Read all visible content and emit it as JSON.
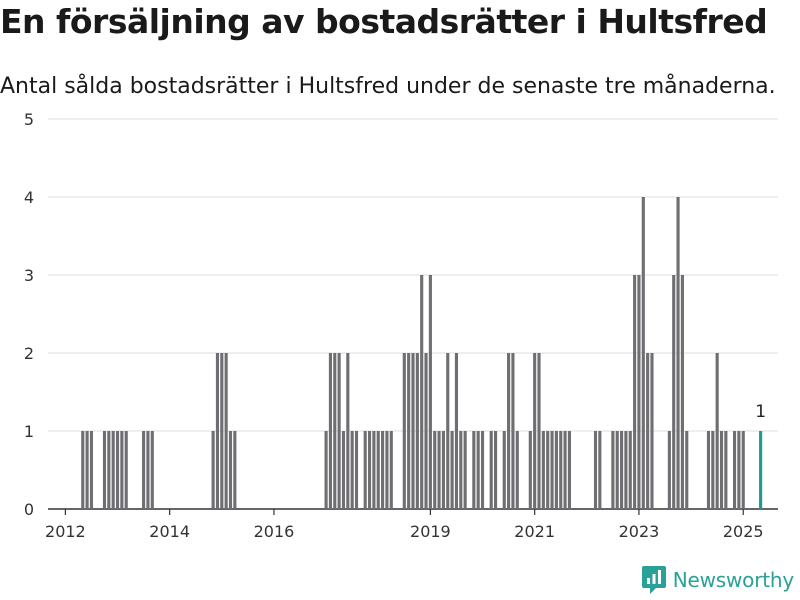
{
  "title": "En försäljning av bostadsrätter i Hultsfred",
  "subtitle": "Antal sålda bostadsrätter i Hultsfred under de senaste tre månaderna.",
  "brand": {
    "name": "Newsworthy",
    "icon": "newsworthy-logo-icon",
    "color": "#2aa198"
  },
  "colors": {
    "bar": "#6f6f73",
    "highlight": "#1f9a8f",
    "grid": "#dddddd",
    "axis": "#333333"
  },
  "chart_data": {
    "type": "bar",
    "ylim": [
      0,
      5
    ],
    "yticks": [
      0,
      1,
      2,
      3,
      4,
      5
    ],
    "xlim": [
      "2011-09",
      "2025-09"
    ],
    "xticks": [
      "2012",
      "2014",
      "2016",
      "2019",
      "2021",
      "2023",
      "2025"
    ],
    "grid": true,
    "series": [
      {
        "values": [
          [
            "2012-05",
            1
          ],
          [
            "2012-06",
            1
          ],
          [
            "2012-07",
            1
          ],
          [
            "2012-10",
            1
          ],
          [
            "2012-11",
            1
          ],
          [
            "2012-12",
            1
          ],
          [
            "2013-01",
            1
          ],
          [
            "2013-02",
            1
          ],
          [
            "2013-03",
            1
          ],
          [
            "2013-07",
            1
          ],
          [
            "2013-08",
            1
          ],
          [
            "2013-09",
            1
          ],
          [
            "2014-11",
            1
          ],
          [
            "2014-12",
            2
          ],
          [
            "2015-01",
            2
          ],
          [
            "2015-02",
            2
          ],
          [
            "2015-03",
            1
          ],
          [
            "2015-04",
            1
          ],
          [
            "2017-01",
            1
          ],
          [
            "2017-02",
            2
          ],
          [
            "2017-03",
            2
          ],
          [
            "2017-04",
            2
          ],
          [
            "2017-05",
            1
          ],
          [
            "2017-06",
            2
          ],
          [
            "2017-07",
            1
          ],
          [
            "2017-08",
            1
          ],
          [
            "2017-10",
            1
          ],
          [
            "2017-11",
            1
          ],
          [
            "2017-12",
            1
          ],
          [
            "2018-01",
            1
          ],
          [
            "2018-02",
            1
          ],
          [
            "2018-03",
            1
          ],
          [
            "2018-04",
            1
          ],
          [
            "2018-07",
            2
          ],
          [
            "2018-08",
            2
          ],
          [
            "2018-09",
            2
          ],
          [
            "2018-10",
            2
          ],
          [
            "2018-11",
            3
          ],
          [
            "2018-12",
            2
          ],
          [
            "2019-01",
            3
          ],
          [
            "2019-02",
            1
          ],
          [
            "2019-03",
            1
          ],
          [
            "2019-04",
            1
          ],
          [
            "2019-05",
            2
          ],
          [
            "2019-06",
            1
          ],
          [
            "2019-07",
            2
          ],
          [
            "2019-08",
            1
          ],
          [
            "2019-09",
            1
          ],
          [
            "2019-11",
            1
          ],
          [
            "2019-12",
            1
          ],
          [
            "2020-01",
            1
          ],
          [
            "2020-03",
            1
          ],
          [
            "2020-04",
            1
          ],
          [
            "2020-06",
            1
          ],
          [
            "2020-07",
            2
          ],
          [
            "2020-08",
            2
          ],
          [
            "2020-09",
            1
          ],
          [
            "2020-12",
            1
          ],
          [
            "2021-01",
            2
          ],
          [
            "2021-02",
            2
          ],
          [
            "2021-03",
            1
          ],
          [
            "2021-04",
            1
          ],
          [
            "2021-05",
            1
          ],
          [
            "2021-06",
            1
          ],
          [
            "2021-07",
            1
          ],
          [
            "2021-08",
            1
          ],
          [
            "2021-09",
            1
          ],
          [
            "2022-03",
            1
          ],
          [
            "2022-04",
            1
          ],
          [
            "2022-07",
            1
          ],
          [
            "2022-08",
            1
          ],
          [
            "2022-09",
            1
          ],
          [
            "2022-10",
            1
          ],
          [
            "2022-11",
            1
          ],
          [
            "2022-12",
            3
          ],
          [
            "2023-01",
            3
          ],
          [
            "2023-02",
            4
          ],
          [
            "2023-03",
            2
          ],
          [
            "2023-04",
            2
          ],
          [
            "2023-08",
            1
          ],
          [
            "2023-09",
            3
          ],
          [
            "2023-10",
            4
          ],
          [
            "2023-11",
            3
          ],
          [
            "2023-12",
            1
          ],
          [
            "2024-05",
            1
          ],
          [
            "2024-06",
            1
          ],
          [
            "2024-07",
            2
          ],
          [
            "2024-08",
            1
          ],
          [
            "2024-09",
            1
          ],
          [
            "2024-11",
            1
          ],
          [
            "2024-12",
            1
          ],
          [
            "2025-01",
            1
          ]
        ]
      }
    ],
    "highlight": {
      "x": "2025-05",
      "y": 1,
      "label": "1"
    }
  }
}
